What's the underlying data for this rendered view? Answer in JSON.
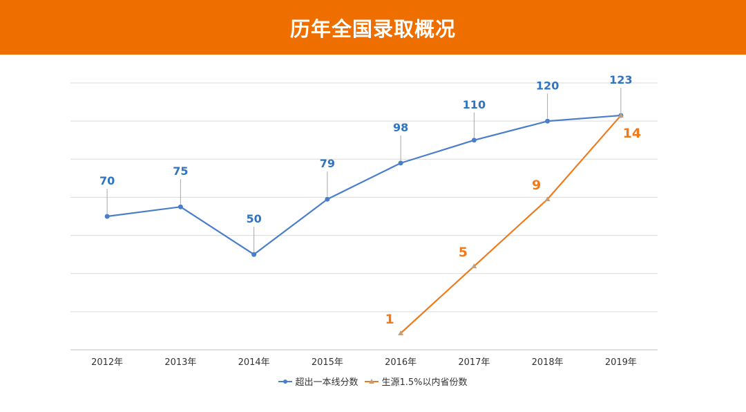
{
  "header": {
    "title": "历年全国录取概况"
  },
  "colors": {
    "banner": "#ee6e00",
    "series1": "#4a7ec9",
    "series1_label": "#2f74c0",
    "series2": "#ee7a1c",
    "grid": "#d9d9d9"
  },
  "chart_data": {
    "type": "line",
    "categories": [
      "2012年",
      "2013年",
      "2014年",
      "2015年",
      "2016年",
      "2017年",
      "2018年",
      "2019年"
    ],
    "series": [
      {
        "name": "超出一本线分数",
        "values": [
          70,
          75,
          50,
          79,
          98,
          110,
          120,
          123
        ],
        "marker": "circle",
        "color": "#4a7ec9"
      },
      {
        "name": "生源1.5%以内省份数",
        "values": [
          null,
          null,
          null,
          null,
          1,
          5,
          9,
          14
        ],
        "marker": "triangle",
        "color": "#ee7a1c"
      }
    ],
    "data_labels": true,
    "grid": true,
    "legend_position": "bottom"
  }
}
